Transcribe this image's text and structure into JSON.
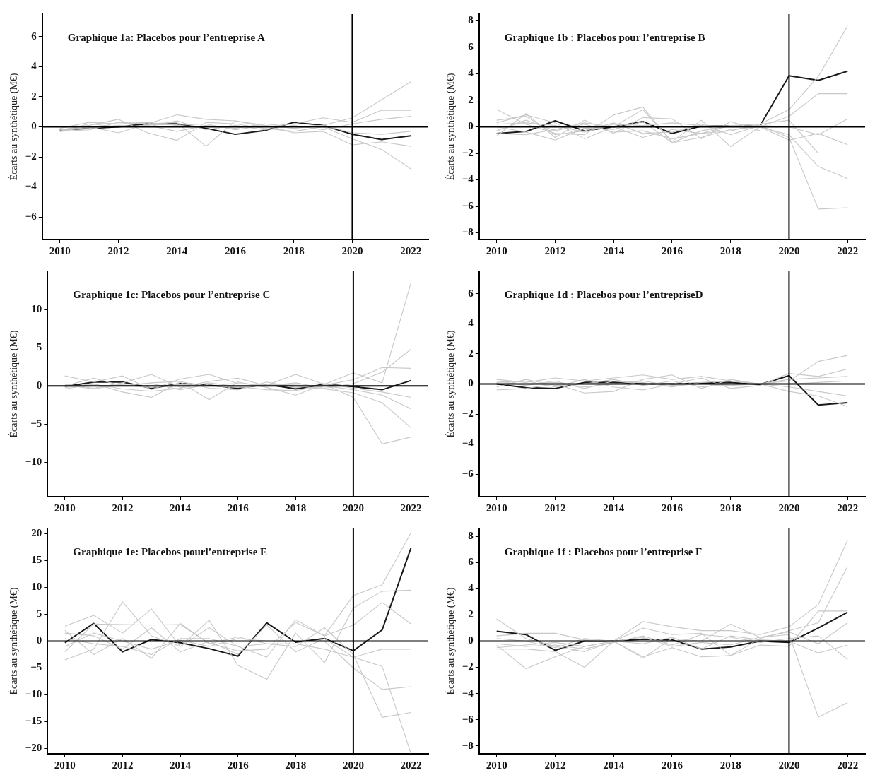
{
  "chart_data": [
    {
      "type": "line",
      "title": "Graphique 1a: Placebos pour l’entreprise A",
      "ylabel": "Écarts au synthétique (M€)",
      "x": [
        2010,
        2011,
        2012,
        2013,
        2014,
        2015,
        2016,
        2017,
        2018,
        2019,
        2020,
        2021,
        2022
      ],
      "xlim": [
        2009.4,
        2022.6
      ],
      "xticks": [
        2010,
        2012,
        2014,
        2016,
        2018,
        2020,
        2022
      ],
      "ylim": [
        -7.5,
        7.5
      ],
      "yticks": [
        -6,
        -4,
        -2,
        0,
        2,
        4,
        6
      ],
      "grid": false,
      "legend": false,
      "marker": "none",
      "line_style": "solid",
      "ref_lines": [
        {
          "axis": "y",
          "value": 0,
          "color": "#000000"
        },
        {
          "axis": "x",
          "value": 2020,
          "color": "#000000"
        }
      ],
      "series": [
        {
          "color": "#c8c8c8",
          "values": [
            -0.3,
            -0.2,
            0.3,
            0.2,
            0.8,
            0.5,
            0.4,
            0.1,
            -0.1,
            0.1,
            0.6,
            1.8,
            3.0
          ]
        },
        {
          "color": "#c8c8c8",
          "values": [
            -0.2,
            0.1,
            0.5,
            -0.4,
            -0.9,
            0.3,
            0.2,
            -0.1,
            -0.3,
            0.0,
            -0.8,
            -1.5,
            -2.8
          ]
        },
        {
          "color": "#c8c8c8",
          "values": [
            -0.3,
            0.0,
            -0.4,
            0.2,
            0.3,
            -1.3,
            0.4,
            0.0,
            0.2,
            0.6,
            0.3,
            1.1,
            1.1
          ]
        },
        {
          "color": "#c8c8c8",
          "values": [
            -0.1,
            0.3,
            0.2,
            0.3,
            0.1,
            0.2,
            -0.2,
            0.1,
            -0.4,
            -0.3,
            -1.2,
            -1.0,
            -1.3
          ]
        },
        {
          "color": "#c8c8c8",
          "values": [
            -0.2,
            -0.1,
            0.1,
            0.0,
            0.4,
            -0.2,
            0.1,
            -0.2,
            0.1,
            -0.2,
            0.2,
            0.5,
            0.7
          ]
        },
        {
          "color": "#c8c8c8",
          "values": [
            -0.3,
            0.2,
            0.0,
            0.1,
            -0.3,
            0.1,
            -0.1,
            0.2,
            0.0,
            0.1,
            -0.4,
            -0.5,
            -0.3
          ]
        },
        {
          "color": "#1a1a1a",
          "values": [
            -0.2,
            -0.1,
            0.0,
            0.2,
            0.2,
            -0.1,
            -0.5,
            -0.25,
            0.3,
            0.1,
            -0.5,
            -0.85,
            -0.6
          ]
        }
      ]
    },
    {
      "type": "line",
      "title": "Graphique 1b : Placebos pour l’entreprise B",
      "ylabel": "Écarts au synthétique (M€)",
      "x": [
        2010,
        2011,
        2012,
        2013,
        2014,
        2015,
        2016,
        2017,
        2018,
        2019,
        2020,
        2021,
        2022
      ],
      "xlim": [
        2009.4,
        2022.6
      ],
      "xticks": [
        2010,
        2012,
        2014,
        2016,
        2018,
        2020,
        2022
      ],
      "ylim": [
        -8.5,
        8.5
      ],
      "yticks": [
        -8,
        -6,
        -4,
        -2,
        0,
        2,
        4,
        6,
        8
      ],
      "grid": false,
      "legend": false,
      "marker": "none",
      "line_style": "solid",
      "ref_lines": [
        {
          "axis": "y",
          "value": 0,
          "color": "#000000"
        },
        {
          "axis": "x",
          "value": 2020,
          "color": "#000000"
        }
      ],
      "series": [
        {
          "color": "#c8c8c8",
          "values": [
            1.3,
            0.2,
            -0.5,
            -0.6,
            0.9,
            1.5,
            -1.2,
            -0.3,
            0.1,
            0.2,
            1.3,
            3.8,
            7.6
          ]
        },
        {
          "color": "#c8c8c8",
          "values": [
            0.3,
            0.9,
            0.3,
            -0.9,
            0.0,
            1.3,
            -1.1,
            0.5,
            -1.5,
            0.0,
            0.8,
            2.5,
            2.5
          ]
        },
        {
          "color": "#c8c8c8",
          "values": [
            -0.7,
            1.0,
            -0.8,
            0.5,
            -0.5,
            0.7,
            0.6,
            -0.9,
            0.4,
            -0.3,
            null,
            null,
            null
          ]
        },
        {
          "color": "#c8c8c8",
          "values": [
            -0.3,
            0.5,
            -0.3,
            0.2,
            -0.4,
            -0.3,
            -0.9,
            -0.5,
            -0.3,
            0.2,
            0.5,
            -2.0,
            null
          ]
        },
        {
          "color": "#c8c8c8",
          "values": [
            0.5,
            0.8,
            -0.6,
            -0.3,
            0.3,
            -0.5,
            -0.4,
            0.2,
            -0.6,
            0.1,
            -0.8,
            -6.2,
            -6.1
          ]
        },
        {
          "color": "#c8c8c8",
          "values": [
            0.0,
            -0.4,
            -1.0,
            -0.1,
            -0.2,
            0.4,
            -1.2,
            -0.8,
            -0.2,
            0.0,
            -0.6,
            -3.0,
            -3.9
          ]
        },
        {
          "color": "#c8c8c8",
          "values": [
            -0.5,
            -0.6,
            -0.2,
            0.3,
            0.0,
            -0.8,
            -0.2,
            -0.5,
            0.1,
            0.0,
            -1.0,
            -0.5,
            -1.35
          ]
        },
        {
          "color": "#c8c8c8",
          "values": [
            0.2,
            0.3,
            0.1,
            -0.4,
            0.2,
            0.1,
            0.3,
            0.1,
            0.0,
            0.1,
            0.0,
            -0.6,
            0.6
          ]
        },
        {
          "color": "#1a1a1a",
          "values": [
            -0.5,
            -0.35,
            0.45,
            -0.3,
            0.0,
            0.4,
            -0.5,
            0.05,
            0.05,
            0.05,
            3.85,
            3.5,
            4.2
          ]
        }
      ]
    },
    {
      "type": "line",
      "title": "Graphique 1c: Placebos pour l’entreprise C",
      "ylabel": "Écarts au synthétique (M€)",
      "x": [
        2010,
        2011,
        2012,
        2013,
        2014,
        2015,
        2016,
        2017,
        2018,
        2019,
        2020,
        2021,
        2022
      ],
      "xlim": [
        2009.4,
        2022.6
      ],
      "xticks": [
        2010,
        2012,
        2014,
        2016,
        2018,
        2020,
        2022
      ],
      "ylim": [
        -14.5,
        15
      ],
      "yticks": [
        -10,
        -5,
        0,
        5,
        10
      ],
      "grid": false,
      "legend": false,
      "marker": "none",
      "line_style": "solid",
      "ref_lines": [
        {
          "axis": "y",
          "value": 0,
          "color": "#000000"
        },
        {
          "axis": "x",
          "value": 2020,
          "color": "#000000"
        }
      ],
      "series": [
        {
          "color": "#c8c8c8",
          "values": [
            1.3,
            0.5,
            1.3,
            -0.5,
            0.9,
            1.5,
            0.3,
            0.1,
            1.5,
            0.2,
            1.7,
            0.4,
            13.5
          ]
        },
        {
          "color": "#c8c8c8",
          "values": [
            -0.2,
            0.3,
            -0.8,
            -1.5,
            0.5,
            -1.8,
            0.5,
            -0.2,
            -1.2,
            0.2,
            -1.5,
            -7.6,
            -6.7
          ]
        },
        {
          "color": "#c8c8c8",
          "values": [
            0.2,
            -0.3,
            0.4,
            1.5,
            -0.2,
            0.6,
            1.0,
            0.0,
            0.4,
            -0.3,
            0.3,
            1.8,
            4.8
          ]
        },
        {
          "color": "#c8c8c8",
          "values": [
            0.0,
            1.0,
            0.0,
            0.4,
            0.6,
            -0.3,
            -0.5,
            0.5,
            -0.2,
            0.1,
            0.8,
            2.4,
            2.3
          ]
        },
        {
          "color": "#c8c8c8",
          "values": [
            -0.4,
            0.2,
            -0.4,
            -0.7,
            -0.3,
            0.4,
            -0.1,
            -0.5,
            -0.6,
            0.0,
            -0.5,
            -1.2,
            -3.0
          ]
        },
        {
          "color": "#c8c8c8",
          "values": [
            0.1,
            -0.4,
            0.2,
            0.3,
            -0.5,
            0.2,
            0.3,
            0.2,
            0.0,
            -0.4,
            -0.9,
            -2.2,
            -5.5
          ]
        },
        {
          "color": "#c8c8c8",
          "values": [
            -0.1,
            0.0,
            0.1,
            -0.2,
            0.2,
            0.0,
            -0.2,
            0.1,
            0.2,
            0.3,
            -0.3,
            -0.8,
            -1.5
          ]
        },
        {
          "color": "#1a1a1a",
          "values": [
            -0.1,
            0.5,
            0.5,
            -0.3,
            0.3,
            0.1,
            -0.3,
            0.2,
            -0.4,
            0.2,
            -0.1,
            -0.5,
            0.7
          ]
        }
      ]
    },
    {
      "type": "line",
      "title": "Graphique 1d : Placebos pour l’entrepriseD",
      "ylabel": "Écarts au synthétique (M€)",
      "x": [
        2010,
        2011,
        2012,
        2013,
        2014,
        2015,
        2016,
        2017,
        2018,
        2019,
        2020,
        2021,
        2022
      ],
      "xlim": [
        2009.4,
        2022.6
      ],
      "xticks": [
        2010,
        2012,
        2014,
        2016,
        2018,
        2020,
        2022
      ],
      "ylim": [
        -7.5,
        7.5
      ],
      "yticks": [
        -6,
        -4,
        -2,
        0,
        2,
        4,
        6
      ],
      "grid": false,
      "legend": false,
      "marker": "none",
      "line_style": "solid",
      "ref_lines": [
        {
          "axis": "y",
          "value": 0,
          "color": "#000000"
        },
        {
          "axis": "x",
          "value": 2020,
          "color": "#000000"
        }
      ],
      "series": [
        {
          "color": "#c8c8c8",
          "values": [
            0.3,
            0.1,
            0.4,
            0.2,
            0.4,
            0.6,
            0.3,
            0.5,
            0.2,
            0.0,
            0.2,
            1.5,
            1.9
          ]
        },
        {
          "color": "#c8c8c8",
          "values": [
            -0.4,
            -0.3,
            0.0,
            -0.6,
            -0.5,
            0.3,
            0.6,
            -0.3,
            0.3,
            0.0,
            -0.5,
            -0.8,
            -1.5
          ]
        },
        {
          "color": "#c8c8c8",
          "values": [
            0.1,
            0.2,
            -0.2,
            0.3,
            -0.2,
            -0.4,
            0.0,
            0.4,
            -0.3,
            -0.1,
            0.7,
            0.5,
            1.0
          ]
        },
        {
          "color": "#c8c8c8",
          "values": [
            0.2,
            -0.1,
            0.2,
            -0.3,
            0.2,
            0.1,
            -0.2,
            0.1,
            0.2,
            0.0,
            0.3,
            0.4,
            0.5
          ]
        },
        {
          "color": "#c8c8c8",
          "values": [
            -0.2,
            0.3,
            -0.1,
            0.0,
            0.3,
            -0.1,
            0.2,
            -0.2,
            0.0,
            0.0,
            -0.2,
            -0.5,
            -0.8
          ]
        },
        {
          "color": "#c8c8c8",
          "values": [
            0.0,
            0.0,
            0.1,
            -0.2,
            0.0,
            0.2,
            -0.1,
            0.0,
            -0.1,
            0.0,
            0.0,
            0.1,
            0.2
          ]
        },
        {
          "color": "#1a1a1a",
          "values": [
            0.0,
            -0.25,
            -0.3,
            0.1,
            0.1,
            0.0,
            0.0,
            0.05,
            0.1,
            -0.05,
            0.55,
            -1.4,
            -1.25
          ]
        }
      ]
    },
    {
      "type": "line",
      "title": "Graphique 1e: Placebos pourl’entreprise E",
      "ylabel": "Écarts au synthétique (M€)",
      "x": [
        2010,
        2011,
        2012,
        2013,
        2014,
        2015,
        2016,
        2017,
        2018,
        2019,
        2020,
        2021,
        2022
      ],
      "xlim": [
        2009.4,
        2022.6
      ],
      "xticks": [
        2010,
        2012,
        2014,
        2016,
        2018,
        2020,
        2022
      ],
      "ylim": [
        -21,
        21
      ],
      "yticks": [
        -20,
        -15,
        -10,
        -5,
        0,
        5,
        10,
        15,
        20
      ],
      "grid": false,
      "legend": false,
      "marker": "none",
      "line_style": "solid",
      "ref_lines": [
        {
          "axis": "y",
          "value": 0,
          "color": "#000000"
        },
        {
          "axis": "x",
          "value": 2020,
          "color": "#000000"
        }
      ],
      "series": [
        {
          "color": "#c8c8c8",
          "values": [
            2.8,
            4.8,
            1.5,
            6.0,
            -1.0,
            2.5,
            -1.0,
            -3.0,
            4.0,
            1.0,
            8.5,
            10.5,
            20.2
          ]
        },
        {
          "color": "#c8c8c8",
          "values": [
            -3.5,
            -1.5,
            7.3,
            1.0,
            -1.0,
            3.9,
            -4.5,
            -7.1,
            1.5,
            -4.0,
            6.2,
            9.3,
            9.5
          ]
        },
        {
          "color": "#c8c8c8",
          "values": [
            2.0,
            -2.5,
            0.5,
            -3.2,
            3.3,
            -0.5,
            0.8,
            -0.5,
            -1.0,
            2.5,
            -2.5,
            -14.2,
            -13.3
          ]
        },
        {
          "color": "#c8c8c8",
          "values": [
            1.5,
            1.0,
            -1.5,
            2.5,
            -2.0,
            0.0,
            -2.5,
            3.0,
            -2.0,
            0.5,
            -3.0,
            -4.7,
            -21
          ]
        },
        {
          "color": "#c8c8c8",
          "values": [
            -2.0,
            3.2,
            3.1,
            3.0,
            3.1,
            -0.4,
            -1.8,
            -1.5,
            3.5,
            1.0,
            3.0,
            7.2,
            3.2
          ]
        },
        {
          "color": "#c8c8c8",
          "values": [
            0.5,
            -0.5,
            -1.0,
            -2.5,
            0.5,
            0.5,
            -1.0,
            -0.5,
            -0.5,
            -1.5,
            -3.0,
            -1.5,
            -1.5
          ]
        },
        {
          "color": "#c8c8c8",
          "values": [
            -1.0,
            1.5,
            0.0,
            -1.5,
            0.2,
            -1.0,
            0.5,
            0.0,
            0.0,
            0.0,
            -5.0,
            -9.0,
            -8.5
          ]
        },
        {
          "color": "#1a1a1a",
          "values": [
            -0.3,
            3.3,
            -2.0,
            0.3,
            -0.3,
            -1.4,
            -2.8,
            3.4,
            -0.2,
            0.5,
            -1.8,
            2.1,
            17.4
          ]
        }
      ]
    },
    {
      "type": "line",
      "title": "Graphique 1f : Placebos pour l’entreprise F",
      "ylabel": "Écarts au synthétique (M€)",
      "x": [
        2010,
        2011,
        2012,
        2013,
        2014,
        2015,
        2016,
        2017,
        2018,
        2019,
        2020,
        2021,
        2022
      ],
      "xlim": [
        2009.4,
        2022.6
      ],
      "xticks": [
        2010,
        2012,
        2014,
        2016,
        2018,
        2020,
        2022
      ],
      "ylim": [
        -8.6,
        8.6
      ],
      "yticks": [
        -8,
        -6,
        -4,
        -2,
        0,
        2,
        4,
        6,
        8
      ],
      "grid": false,
      "legend": false,
      "marker": "none",
      "line_style": "solid",
      "ref_lines": [
        {
          "axis": "y",
          "value": 0,
          "color": "#000000"
        },
        {
          "axis": "x",
          "value": 2020,
          "color": "#000000"
        }
      ],
      "series": [
        {
          "color": "#c8c8c8",
          "values": [
            1.7,
            0.2,
            -0.4,
            -0.8,
            0.0,
            1.5,
            1.1,
            0.8,
            0.8,
            0.5,
            1.1,
            2.8,
            7.7
          ]
        },
        {
          "color": "#c8c8c8",
          "values": [
            -0.3,
            -2.1,
            -1.2,
            -0.4,
            0.0,
            -1.3,
            0.2,
            0.0,
            1.3,
            0.3,
            0.5,
            -5.8,
            -4.7
          ]
        },
        {
          "color": "#c8c8c8",
          "values": [
            0.4,
            0.6,
            0.6,
            0.1,
            0.0,
            1.0,
            0.5,
            0.6,
            -1.1,
            0.2,
            0.8,
            1.4,
            5.7
          ]
        },
        {
          "color": "#c8c8c8",
          "values": [
            -0.6,
            -0.6,
            -0.8,
            -2.0,
            0.0,
            -1.2,
            -0.5,
            -1.2,
            -1.1,
            -0.3,
            -0.4,
            2.3,
            2.3
          ]
        },
        {
          "color": "#c8c8c8",
          "values": [
            -0.2,
            -0.4,
            -0.3,
            -0.6,
            -0.1,
            0.4,
            -0.3,
            0.5,
            0.3,
            -0.1,
            0.2,
            0.4,
            -1.4
          ]
        },
        {
          "color": "#c8c8c8",
          "values": [
            0.2,
            0.0,
            -0.5,
            0.2,
            0.0,
            -0.2,
            0.3,
            -0.6,
            0.4,
            0.1,
            0.0,
            -0.9,
            -0.3
          ]
        },
        {
          "color": "#c8c8c8",
          "values": [
            -0.5,
            -0.3,
            -0.1,
            -0.4,
            0.0,
            0.3,
            -0.4,
            -0.1,
            -0.3,
            0.3,
            0.7,
            -0.2,
            1.4
          ]
        },
        {
          "color": "#1a1a1a",
          "values": [
            0.75,
            0.5,
            -0.7,
            0.0,
            0.0,
            0.15,
            0.1,
            -0.6,
            -0.45,
            0.0,
            -0.1,
            1.0,
            2.2
          ]
        }
      ]
    }
  ]
}
